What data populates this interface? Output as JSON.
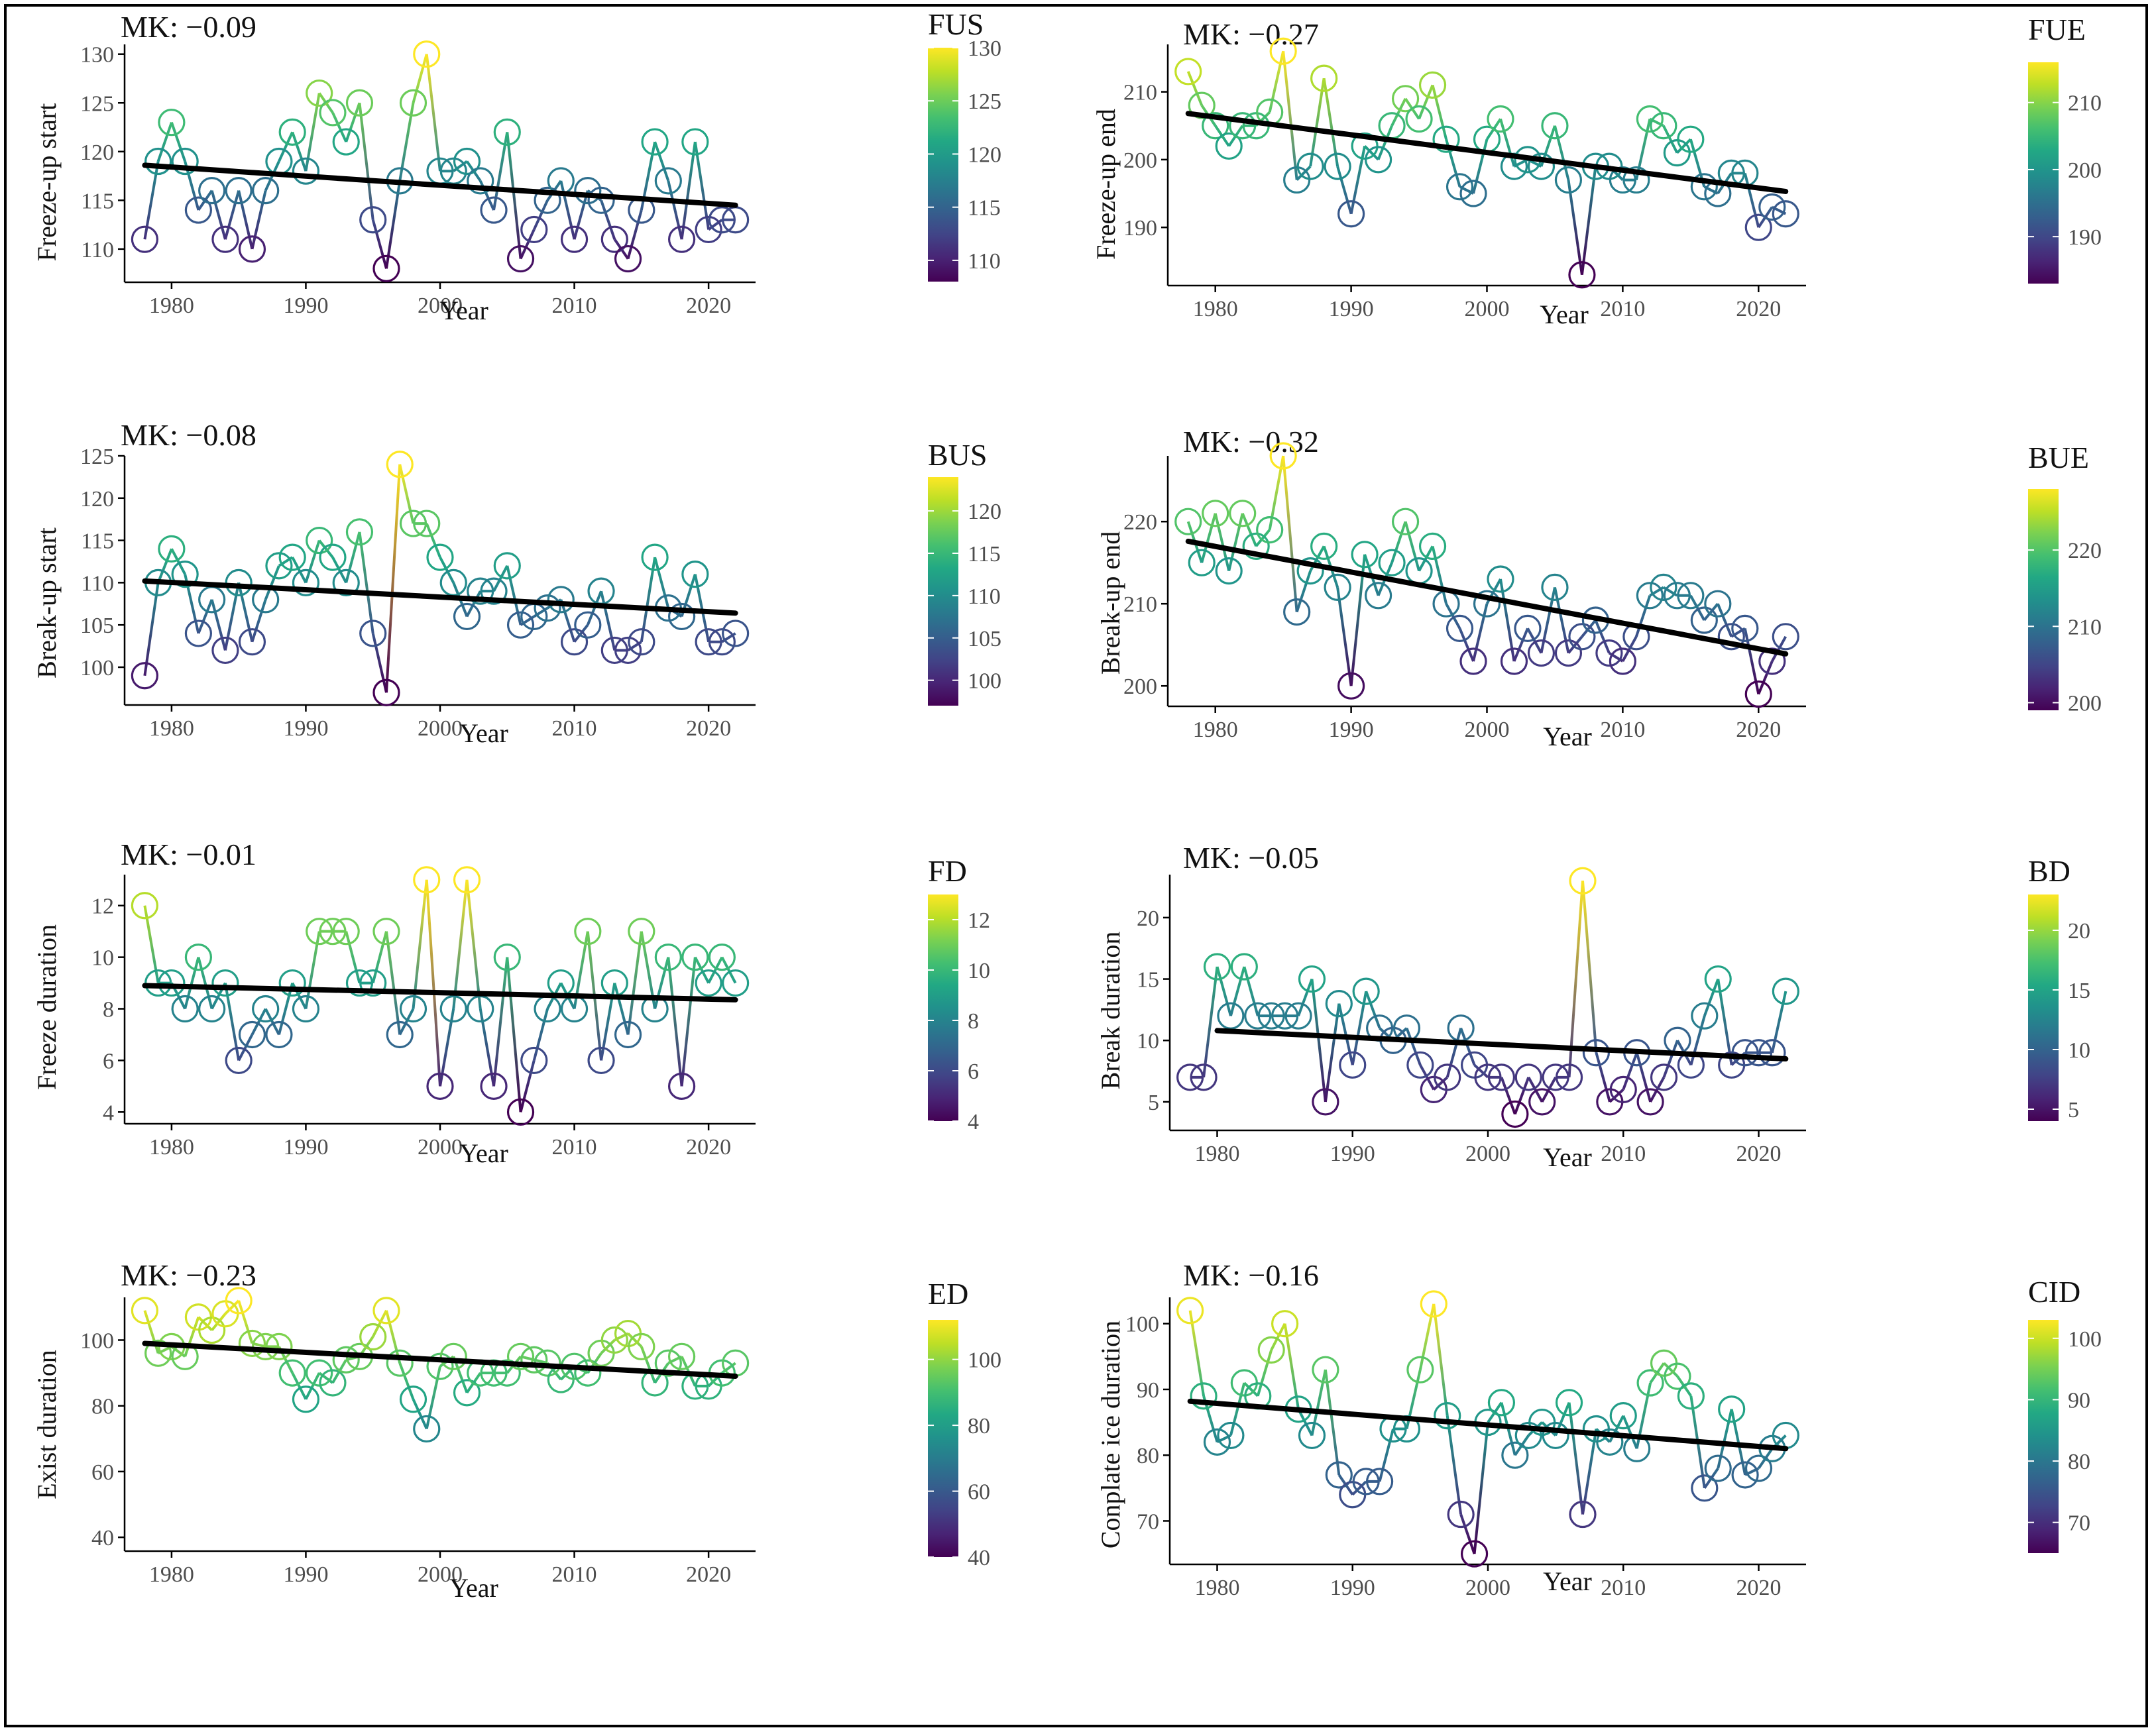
{
  "colors": {
    "viridis": [
      "#440154",
      "#482475",
      "#414487",
      "#355f8d",
      "#2a788e",
      "#21918c",
      "#22a884",
      "#44bf70",
      "#7ad151",
      "#bddf26",
      "#fde725"
    ],
    "trend": "#000000",
    "frame": "#000000"
  },
  "chart_data": [
    {
      "type": "line",
      "id": "fus",
      "mk_label": "MK: −0.09",
      "ylabel": "Freeze-up start",
      "xlabel": "Year",
      "colorbar_title": "FUS",
      "x_ticks": [
        1980,
        1990,
        2000,
        2010,
        2020
      ],
      "y_ticks": [
        110,
        115,
        120,
        125,
        130
      ],
      "colorbar_ticks": [
        110,
        115,
        120,
        125,
        130
      ],
      "xlim": [
        1976.5,
        2023.5
      ],
      "ylim": [
        107,
        131
      ],
      "color_range": [
        108,
        130
      ],
      "x": [
        1978,
        1979,
        1980,
        1981,
        1982,
        1983,
        1984,
        1985,
        1986,
        1987,
        1988,
        1989,
        1990,
        1991,
        1992,
        1993,
        1994,
        1995,
        1996,
        1997,
        1998,
        1999,
        2000,
        2001,
        2002,
        2003,
        2004,
        2005,
        2006,
        2007,
        2008,
        2009,
        2010,
        2011,
        2012,
        2013,
        2014,
        2015,
        2016,
        2017,
        2018,
        2019,
        2020,
        2021,
        2022
      ],
      "values": [
        111,
        119,
        123,
        119,
        114,
        116,
        111,
        116,
        110,
        116,
        119,
        122,
        118,
        126,
        124,
        121,
        125,
        113,
        108,
        117,
        125,
        130,
        118,
        118,
        119,
        117,
        114,
        122,
        109,
        112,
        115,
        117,
        111,
        116,
        115,
        111,
        109,
        114,
        121,
        117,
        111,
        121,
        112,
        113,
        113
      ],
      "trend": {
        "x": [
          1978,
          2022
        ],
        "y": [
          118.6,
          114.5
        ]
      }
    },
    {
      "type": "line",
      "id": "fue",
      "mk_label": "MK: −0.27",
      "ylabel": "Freeze-up end",
      "xlabel": "Year",
      "colorbar_title": "FUE",
      "x_ticks": [
        1980,
        1990,
        2000,
        2010,
        2020
      ],
      "y_ticks": [
        190,
        200,
        210
      ],
      "colorbar_ticks": [
        190,
        200,
        210
      ],
      "xlim": [
        1976.5,
        2023.5
      ],
      "ylim": [
        182,
        217
      ],
      "color_range": [
        183,
        216
      ],
      "x": [
        1978,
        1979,
        1980,
        1981,
        1982,
        1983,
        1984,
        1985,
        1986,
        1987,
        1988,
        1989,
        1990,
        1991,
        1992,
        1993,
        1994,
        1995,
        1996,
        1997,
        1998,
        1999,
        2000,
        2001,
        2002,
        2003,
        2004,
        2005,
        2006,
        2007,
        2008,
        2009,
        2010,
        2011,
        2012,
        2013,
        2014,
        2015,
        2016,
        2017,
        2018,
        2019,
        2020,
        2021,
        2022
      ],
      "values": [
        213,
        208,
        205,
        202,
        205,
        205,
        207,
        216,
        197,
        199,
        212,
        199,
        192,
        202,
        200,
        205,
        209,
        206,
        211,
        203,
        196,
        195,
        203,
        206,
        199,
        200,
        199,
        205,
        197,
        183,
        199,
        199,
        197,
        197,
        206,
        205,
        201,
        203,
        196,
        195,
        198,
        198,
        190,
        193,
        192
      ],
      "trend": {
        "x": [
          1978,
          2022
        ],
        "y": [
          206.8,
          195.3
        ]
      }
    },
    {
      "type": "line",
      "id": "bus",
      "mk_label": "MK: −0.08",
      "ylabel": "Break-up start",
      "xlabel": "Year",
      "colorbar_title": "BUS",
      "x_ticks": [
        1980,
        1990,
        2000,
        2010,
        2020
      ],
      "y_ticks": [
        100,
        105,
        110,
        115,
        120,
        125
      ],
      "colorbar_ticks": [
        100,
        105,
        110,
        115,
        120
      ],
      "xlim": [
        1976.5,
        2023.5
      ],
      "ylim": [
        96,
        125
      ],
      "color_range": [
        97,
        124
      ],
      "x": [
        1978,
        1979,
        1980,
        1981,
        1982,
        1983,
        1984,
        1985,
        1986,
        1987,
        1988,
        1989,
        1990,
        1991,
        1992,
        1993,
        1994,
        1995,
        1996,
        1997,
        1998,
        1999,
        2000,
        2001,
        2002,
        2003,
        2004,
        2005,
        2006,
        2007,
        2008,
        2009,
        2010,
        2011,
        2012,
        2013,
        2014,
        2015,
        2016,
        2017,
        2018,
        2019,
        2020,
        2021,
        2022
      ],
      "values": [
        99,
        110,
        114,
        111,
        104,
        108,
        102,
        110,
        103,
        108,
        112,
        113,
        110,
        115,
        113,
        110,
        116,
        104,
        97,
        124,
        117,
        117,
        113,
        110,
        106,
        109,
        109,
        112,
        105,
        106,
        107,
        108,
        103,
        105,
        109,
        102,
        102,
        103,
        113,
        107,
        106,
        111,
        103,
        103,
        104
      ],
      "trend": {
        "x": [
          1978,
          2022
        ],
        "y": [
          110.2,
          106.4
        ]
      }
    },
    {
      "type": "line",
      "id": "bue",
      "mk_label": "MK: −0.32",
      "ylabel": "Break-up end",
      "xlabel": "Year",
      "colorbar_title": "BUE",
      "x_ticks": [
        1980,
        1990,
        2000,
        2010,
        2020
      ],
      "y_ticks": [
        200,
        210,
        220
      ],
      "colorbar_ticks": [
        200,
        210,
        220
      ],
      "xlim": [
        1976.5,
        2023.5
      ],
      "ylim": [
        198,
        228
      ],
      "color_range": [
        199,
        228
      ],
      "x": [
        1978,
        1979,
        1980,
        1981,
        1982,
        1983,
        1984,
        1985,
        1986,
        1987,
        1988,
        1989,
        1990,
        1991,
        1992,
        1993,
        1994,
        1995,
        1996,
        1997,
        1998,
        1999,
        2000,
        2001,
        2002,
        2003,
        2004,
        2005,
        2006,
        2007,
        2008,
        2009,
        2010,
        2011,
        2012,
        2013,
        2014,
        2015,
        2016,
        2017,
        2018,
        2019,
        2020,
        2021,
        2022
      ],
      "values": [
        220,
        215,
        221,
        214,
        221,
        217,
        219,
        228,
        209,
        214,
        217,
        212,
        200,
        216,
        211,
        215,
        220,
        214,
        217,
        210,
        207,
        203,
        210,
        213,
        203,
        207,
        204,
        212,
        204,
        206,
        208,
        204,
        203,
        206,
        211,
        212,
        211,
        211,
        208,
        210,
        206,
        207,
        199,
        203,
        206
      ],
      "trend": {
        "x": [
          1978,
          2022
        ],
        "y": [
          217.6,
          203.9
        ]
      }
    },
    {
      "type": "line",
      "id": "fd",
      "mk_label": "MK: −0.01",
      "ylabel": "Freeze duration",
      "xlabel": "Year",
      "colorbar_title": "FD",
      "x_ticks": [
        1980,
        1990,
        2000,
        2010,
        2020
      ],
      "y_ticks": [
        4,
        6,
        8,
        10,
        12
      ],
      "colorbar_ticks": [
        4,
        6,
        8,
        10,
        12
      ],
      "xlim": [
        1976.5,
        2023.5
      ],
      "ylim": [
        3.7,
        13.2
      ],
      "color_range": [
        4,
        13
      ],
      "x": [
        1978,
        1979,
        1980,
        1981,
        1982,
        1983,
        1984,
        1985,
        1986,
        1987,
        1988,
        1989,
        1990,
        1991,
        1992,
        1993,
        1994,
        1995,
        1996,
        1997,
        1998,
        1999,
        2000,
        2001,
        2002,
        2003,
        2004,
        2005,
        2006,
        2007,
        2008,
        2009,
        2010,
        2011,
        2012,
        2013,
        2014,
        2015,
        2016,
        2017,
        2018,
        2019,
        2020,
        2021,
        2022
      ],
      "values": [
        12,
        9,
        9,
        8,
        10,
        8,
        9,
        6,
        7,
        8,
        7,
        9,
        8,
        11,
        11,
        11,
        9,
        9,
        11,
        7,
        8,
        13,
        5,
        8,
        13,
        8,
        5,
        10,
        4,
        6,
        8,
        9,
        8,
        11,
        6,
        9,
        7,
        11,
        8,
        10,
        5,
        10,
        9,
        10,
        9
      ],
      "trend": {
        "x": [
          1978,
          2022
        ],
        "y": [
          8.9,
          8.35
        ]
      }
    },
    {
      "type": "line",
      "id": "bd",
      "mk_label": "MK: −0.05",
      "ylabel": "Break duration",
      "xlabel": "Year",
      "colorbar_title": "BD",
      "x_ticks": [
        1980,
        1990,
        2000,
        2010,
        2020
      ],
      "y_ticks": [
        5,
        10,
        15,
        20
      ],
      "colorbar_ticks": [
        5,
        10,
        15,
        20
      ],
      "xlim": [
        1976.5,
        2023.5
      ],
      "ylim": [
        3,
        23.5
      ],
      "color_range": [
        4,
        23
      ],
      "x": [
        1978,
        1979,
        1980,
        1981,
        1982,
        1983,
        1984,
        1985,
        1986,
        1987,
        1988,
        1989,
        1990,
        1991,
        1992,
        1993,
        1994,
        1995,
        1996,
        1997,
        1998,
        1999,
        2000,
        2001,
        2002,
        2003,
        2004,
        2005,
        2006,
        2007,
        2008,
        2009,
        2010,
        2011,
        2012,
        2013,
        2014,
        2015,
        2016,
        2017,
        2018,
        2019,
        2020,
        2021,
        2022
      ],
      "values": [
        7,
        7,
        16,
        12,
        16,
        12,
        12,
        12,
        12,
        15,
        5,
        13,
        8,
        14,
        11,
        10,
        11,
        8,
        6,
        7,
        11,
        8,
        7,
        7,
        4,
        7,
        5,
        7,
        7,
        23,
        9,
        5,
        6,
        9,
        5,
        7,
        10,
        8,
        12,
        15,
        8,
        9,
        9,
        9,
        14
      ],
      "trend": {
        "x": [
          1980,
          2022
        ],
        "y": [
          10.8,
          8.5
        ]
      }
    },
    {
      "type": "line",
      "id": "ed",
      "mk_label": "MK: −0.23",
      "ylabel": "Exist duration",
      "xlabel": "Year",
      "colorbar_title": "ED",
      "x_ticks": [
        1980,
        1990,
        2000,
        2010,
        2020
      ],
      "y_ticks": [
        40,
        60,
        80,
        100
      ],
      "colorbar_ticks": [
        40,
        60,
        80,
        100
      ],
      "xlim": [
        1976.5,
        2023.5
      ],
      "ylim": [
        37,
        113
      ],
      "color_range": [
        40,
        112
      ],
      "x": [
        1978,
        1979,
        1980,
        1981,
        1982,
        1983,
        1984,
        1985,
        1986,
        1987,
        1988,
        1989,
        1990,
        1991,
        1992,
        1993,
        1994,
        1995,
        1996,
        1997,
        1998,
        1999,
        2000,
        2001,
        2002,
        2003,
        2004,
        2005,
        2006,
        2007,
        2008,
        2009,
        2010,
        2011,
        2012,
        2013,
        2014,
        2015,
        2016,
        2017,
        2018,
        2019,
        2020,
        2021,
        2022
      ],
      "values": [
        109,
        96,
        98,
        95,
        107,
        103,
        108,
        112,
        99,
        98,
        98,
        90,
        82,
        90,
        87,
        94,
        95,
        101,
        109,
        93,
        82,
        73,
        92,
        95,
        84,
        90,
        90,
        90,
        95,
        94,
        93,
        88,
        92,
        90,
        96,
        100,
        102,
        98,
        87,
        93,
        95,
        86,
        86,
        90,
        93
      ],
      "trend": {
        "x": [
          1978,
          2022
        ],
        "y": [
          99.0,
          89.0
        ]
      }
    },
    {
      "type": "line",
      "id": "cid",
      "mk_label": "MK: −0.16",
      "ylabel": "Conplate ice duration",
      "xlabel": "Year",
      "colorbar_title": "CID",
      "x_ticks": [
        1980,
        1990,
        2000,
        2010,
        2020
      ],
      "y_ticks": [
        70,
        80,
        90,
        100
      ],
      "colorbar_ticks": [
        70,
        80,
        90,
        100
      ],
      "xlim": [
        1976.5,
        2023.5
      ],
      "ylim": [
        64,
        104
      ],
      "color_range": [
        65,
        103
      ],
      "x": [
        1978,
        1979,
        1980,
        1981,
        1982,
        1983,
        1984,
        1985,
        1986,
        1987,
        1988,
        1989,
        1990,
        1991,
        1992,
        1993,
        1994,
        1995,
        1996,
        1997,
        1998,
        1999,
        2000,
        2001,
        2002,
        2003,
        2004,
        2005,
        2006,
        2007,
        2008,
        2009,
        2010,
        2011,
        2012,
        2013,
        2014,
        2015,
        2016,
        2017,
        2018,
        2019,
        2020,
        2021,
        2022
      ],
      "values": [
        102,
        89,
        82,
        83,
        91,
        89,
        96,
        100,
        87,
        83,
        93,
        77,
        74,
        76,
        76,
        84,
        84,
        93,
        103,
        86,
        71,
        65,
        85,
        88,
        80,
        83,
        85,
        83,
        88,
        71,
        84,
        82,
        86,
        81,
        91,
        94,
        92,
        89,
        75,
        78,
        87,
        77,
        78,
        81,
        83
      ],
      "trend": {
        "x": [
          1978,
          2022
        ],
        "y": [
          88.2,
          81.0
        ]
      }
    }
  ]
}
